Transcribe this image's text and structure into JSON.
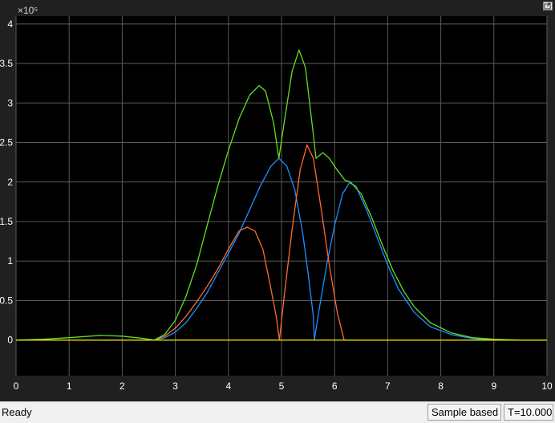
{
  "status": {
    "text": "Ready",
    "mode": "Sample based",
    "time": "T=10.000"
  },
  "scope": {
    "background": "#000000",
    "grid_color": "#5a5a5a",
    "axis_color": "#ffffff",
    "exponent_label": "×10⁵",
    "undock_icon": "undock-icon"
  },
  "chart_data": {
    "type": "line",
    "xlim": [
      0,
      10
    ],
    "ylim": [
      -0.45,
      4.1
    ],
    "y_exponent": 5,
    "grid": true,
    "xticks": [
      "0",
      "1",
      "2",
      "3",
      "4",
      "5",
      "6",
      "7",
      "8",
      "9",
      "10"
    ],
    "yticks": [
      "0",
      "0.5",
      "1",
      "1.5",
      "2",
      "2.5",
      "3",
      "3.5",
      "4"
    ],
    "xlabel": "",
    "ylabel": "",
    "title": "",
    "series": [
      {
        "color": "#1e90ff",
        "points": [
          [
            0,
            0
          ],
          [
            2.6,
            0
          ],
          [
            2.8,
            0.03
          ],
          [
            3.0,
            0.1
          ],
          [
            3.2,
            0.22
          ],
          [
            3.4,
            0.4
          ],
          [
            3.6,
            0.6
          ],
          [
            3.8,
            0.85
          ],
          [
            4.0,
            1.1
          ],
          [
            4.2,
            1.35
          ],
          [
            4.4,
            1.65
          ],
          [
            4.6,
            1.95
          ],
          [
            4.8,
            2.2
          ],
          [
            4.95,
            2.3
          ],
          [
            5.1,
            2.2
          ],
          [
            5.25,
            1.9
          ],
          [
            5.4,
            1.35
          ],
          [
            5.5,
            0.85
          ],
          [
            5.6,
            0.3
          ],
          [
            5.62,
            0
          ],
          [
            5.7,
            0.35
          ],
          [
            5.85,
            0.95
          ],
          [
            6.0,
            1.45
          ],
          [
            6.15,
            1.85
          ],
          [
            6.28,
            1.99
          ],
          [
            6.4,
            1.95
          ],
          [
            6.6,
            1.65
          ],
          [
            6.8,
            1.3
          ],
          [
            7.0,
            0.95
          ],
          [
            7.2,
            0.65
          ],
          [
            7.5,
            0.35
          ],
          [
            7.8,
            0.17
          ],
          [
            8.2,
            0.07
          ],
          [
            8.6,
            0.02
          ],
          [
            9.0,
            0
          ],
          [
            10,
            0
          ]
        ]
      },
      {
        "color": "#ff6a30",
        "points": [
          [
            0,
            0
          ],
          [
            2.6,
            0
          ],
          [
            2.8,
            0.05
          ],
          [
            3.0,
            0.15
          ],
          [
            3.2,
            0.3
          ],
          [
            3.4,
            0.48
          ],
          [
            3.6,
            0.68
          ],
          [
            3.8,
            0.9
          ],
          [
            4.0,
            1.15
          ],
          [
            4.2,
            1.38
          ],
          [
            4.35,
            1.43
          ],
          [
            4.5,
            1.38
          ],
          [
            4.65,
            1.15
          ],
          [
            4.8,
            0.65
          ],
          [
            4.9,
            0.3
          ],
          [
            4.96,
            0
          ],
          [
            5.05,
            0.55
          ],
          [
            5.2,
            1.4
          ],
          [
            5.35,
            2.15
          ],
          [
            5.48,
            2.47
          ],
          [
            5.6,
            2.3
          ],
          [
            5.75,
            1.65
          ],
          [
            5.9,
            0.95
          ],
          [
            6.05,
            0.35
          ],
          [
            6.18,
            0
          ],
          [
            10,
            0
          ]
        ]
      },
      {
        "color": "#66dd22",
        "points": [
          [
            0,
            0
          ],
          [
            0.5,
            0.01
          ],
          [
            1.0,
            0.03
          ],
          [
            1.6,
            0.06
          ],
          [
            2.0,
            0.05
          ],
          [
            2.4,
            0.02
          ],
          [
            2.6,
            0
          ],
          [
            2.8,
            0.07
          ],
          [
            3.0,
            0.25
          ],
          [
            3.2,
            0.55
          ],
          [
            3.4,
            0.95
          ],
          [
            3.6,
            1.45
          ],
          [
            3.8,
            1.95
          ],
          [
            4.0,
            2.4
          ],
          [
            4.2,
            2.8
          ],
          [
            4.4,
            3.1
          ],
          [
            4.58,
            3.22
          ],
          [
            4.7,
            3.15
          ],
          [
            4.85,
            2.75
          ],
          [
            4.95,
            2.3
          ],
          [
            5.05,
            2.75
          ],
          [
            5.2,
            3.4
          ],
          [
            5.33,
            3.67
          ],
          [
            5.45,
            3.45
          ],
          [
            5.6,
            2.6
          ],
          [
            5.65,
            2.3
          ],
          [
            5.78,
            2.37
          ],
          [
            5.9,
            2.3
          ],
          [
            6.05,
            2.15
          ],
          [
            6.2,
            2.02
          ],
          [
            6.3,
            2.0
          ],
          [
            6.5,
            1.85
          ],
          [
            6.7,
            1.55
          ],
          [
            6.9,
            1.2
          ],
          [
            7.1,
            0.88
          ],
          [
            7.3,
            0.62
          ],
          [
            7.5,
            0.42
          ],
          [
            7.8,
            0.22
          ],
          [
            8.2,
            0.09
          ],
          [
            8.6,
            0.03
          ],
          [
            9.0,
            0.01
          ],
          [
            9.5,
            0
          ],
          [
            10,
            0
          ]
        ]
      },
      {
        "color": "#dddd00",
        "points": [
          [
            0,
            0
          ],
          [
            10,
            0
          ]
        ]
      }
    ]
  }
}
